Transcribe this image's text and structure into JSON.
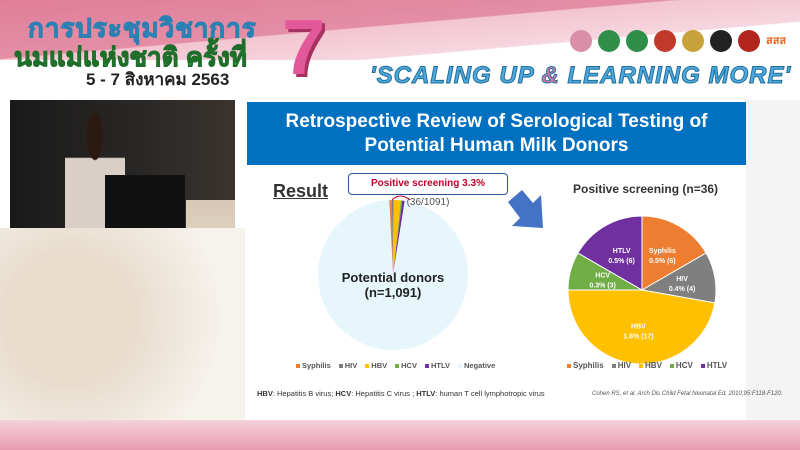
{
  "banner": {
    "conference_line1": "การประชุมวิชาการ",
    "conference_line2": "นมแม่แห่งชาติ ครั้งที่",
    "edition": "7",
    "dates": "5 - 7 สิงหาคม 2563",
    "slogan_part1": "'SCALING UP ",
    "slogan_amp": "&",
    "slogan_part2": " LEARNING MORE'",
    "logos": [
      "#d98fa8",
      "#2f8f4a",
      "#2f8f4a",
      "#c0392b",
      "#c8a23a",
      "#222222",
      "#b3261e",
      "#e06a2a"
    ],
    "logo_text": "สสส"
  },
  "slide": {
    "title_line1": "Retrospective Review of Serological Testing of",
    "title_line2": "Potential Human Milk Donors",
    "result_label": "Result",
    "callout_bold": "Positive screening 3.3%",
    "callout_rest": " (36/1091)",
    "donors_label": "Potential donors",
    "donors_n": "(n=1,091)",
    "footnote": [
      {
        "abbr": "HBV",
        "text": ": Hepatitis B virus; "
      },
      {
        "abbr": "HCV",
        "text": ": Hepatitis C virus ; "
      },
      {
        "abbr": "HTLV",
        "text": ": human T cell lymphotropic virus"
      }
    ],
    "citation": "Cohen RS, et al. Arch Dis Child Fetal Neonatal Ed. 2010;95:F118-F120."
  },
  "chart_data": [
    {
      "type": "pie",
      "categories": [
        "Syphilis",
        "HIV",
        "HBV",
        "HCV",
        "HTLV",
        "Negative"
      ],
      "values": [
        6,
        4,
        17,
        3,
        6,
        1055
      ],
      "colors": [
        "#ed7d31",
        "#7f7f7f",
        "#ffc000",
        "#70ad47",
        "#7030a0",
        "#e6f6fb"
      ],
      "legend": "bottom"
    },
    {
      "type": "pie",
      "title": "Positive screening (n=36)",
      "categories": [
        "Syphilis",
        "HIV",
        "HBV",
        "HCV",
        "HTLV"
      ],
      "values": [
        6,
        4,
        17,
        3,
        6
      ],
      "labels": [
        "0.5% (6)",
        "0.4% (4)",
        "1.6% (17)",
        "0.3% (3)",
        "0.5% (6)"
      ],
      "colors": [
        "#ed7d31",
        "#7f7f7f",
        "#ffc000",
        "#70ad47",
        "#7030a0"
      ],
      "legend": "bottom"
    }
  ]
}
